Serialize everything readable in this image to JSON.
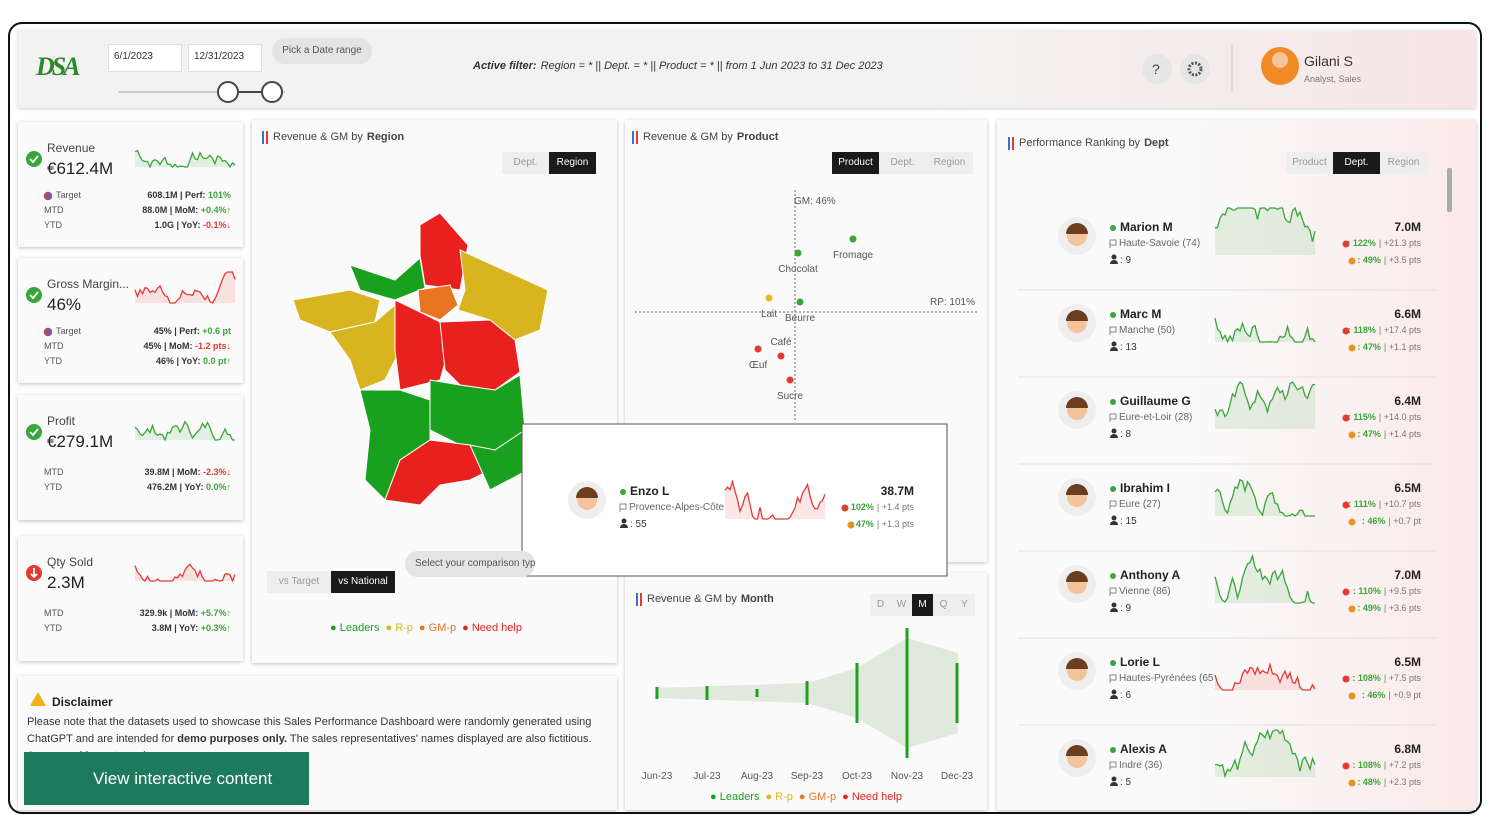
{
  "header": {
    "logo": "DSA",
    "date_start": "6/1/2023",
    "date_end": "12/31/2023",
    "date_range_hint": "Pick a Date range",
    "active_filter_label": "Active filter:",
    "active_filter": "Region = * || Dept. = * || Product = * || from 1 Jun 2023 to 31 Dec 2023",
    "help": "?",
    "user_name": "Gilani S",
    "user_role": "Analyst, Sales"
  },
  "kpis": [
    {
      "title": "Revenue",
      "value": "€612.4M",
      "rows": [
        {
          "label": "Target",
          "value": "608.1M | Perf: ",
          "delta": "101%"
        },
        {
          "label": "MTD",
          "value": "88.0M | MoM: ",
          "delta": "+0.4%↑"
        },
        {
          "label": "YTD",
          "value": "1.0G | YoY: ",
          "delta": "-0.1%↓"
        }
      ]
    },
    {
      "title": "Gross Margin...",
      "value": "46%",
      "rows": [
        {
          "label": "Target",
          "value": "45% | Perf: ",
          "delta": "+0.6 pt"
        },
        {
          "label": "MTD",
          "value": "45% | MoM: ",
          "delta": "-1.2 pts↓"
        },
        {
          "label": "YTD",
          "value": "46% | YoY: ",
          "delta": "0.0 pt↑"
        }
      ]
    },
    {
      "title": "Profit",
      "value": "€279.1M",
      "rows": [
        {
          "label": "MTD",
          "value": "39.8M | MoM: ",
          "delta": "-2.3%↓"
        },
        {
          "label": "YTD",
          "value": "476.2M | YoY: ",
          "delta": "0.0%↑"
        }
      ]
    },
    {
      "title": "Qty Sold",
      "value": "2.3M",
      "rows": [
        {
          "label": "MTD",
          "value": "329.9k | MoM: ",
          "delta": "+5.7%↑"
        },
        {
          "label": "YTD",
          "value": "3.8M | YoY: ",
          "delta": "+0.3%↑"
        }
      ]
    }
  ],
  "region_panel": {
    "title_prefix": "Revenue & GM by",
    "title_bold": "Region",
    "toggles": [
      "Dept.",
      "Region"
    ],
    "active": 1,
    "comparison": [
      "vs Target",
      "vs National"
    ],
    "comparison_active": 1,
    "comparison_hint": "Select your comparison typ",
    "legend": [
      {
        "name": "Leaders",
        "color": "#1aa01f"
      },
      {
        "name": "R-p",
        "color": "#d8b51f"
      },
      {
        "name": "GM-p",
        "color": "#e87520"
      },
      {
        "name": "Need help",
        "color": "#e8201e"
      }
    ]
  },
  "product_panel": {
    "title_prefix": "Revenue & GM by",
    "title_bold": "Product",
    "toggles": [
      "Product",
      "Dept.",
      "Region"
    ],
    "active": 0,
    "gm_label": "GM: 46%",
    "rp_label": "RP: 101%",
    "points": [
      "Fromage",
      "Chocolat",
      "Beurre",
      "Lait",
      "Café",
      "Œuf",
      "Sucre"
    ]
  },
  "month_panel": {
    "title_prefix": "Revenue & GM by",
    "title_bold": "Month",
    "toggles": [
      "D",
      "W",
      "M",
      "Q",
      "Y"
    ],
    "active": 2,
    "months": [
      "Jun-23",
      "Jul-23",
      "Aug-23",
      "Sep-23",
      "Oct-23",
      "Nov-23",
      "Dec-23"
    ]
  },
  "ranking_panel": {
    "title_prefix": "Performance Ranking by",
    "title_bold": "Dept",
    "toggles": [
      "Product",
      "Dept.",
      "Region"
    ],
    "active": 1,
    "people": [
      {
        "name": "Marion M",
        "dept": "Haute-Savoie (74)",
        "count": ": 9",
        "revenue": "7.0M",
        "rp": ": 122%",
        "rp_delta": "| +21.3 pts",
        "gm": ": 49%",
        "gm_delta": "| +3.5 pts"
      },
      {
        "name": "Marc M",
        "dept": "Manche (50)",
        "count": ": 13",
        "revenue": "6.6M",
        "rp": ": 118%",
        "rp_delta": "| +17.4 pts",
        "gm": ": 47%",
        "gm_delta": "| +1.1 pts"
      },
      {
        "name": "Guillaume G",
        "dept": "Eure-et-Loir (28)",
        "count": ": 8",
        "revenue": "6.4M",
        "rp": ": 115%",
        "rp_delta": "| +14.0 pts",
        "gm": ": 47%",
        "gm_delta": "| +1.4 pts"
      },
      {
        "name": "Ibrahim I",
        "dept": "Eure (27)",
        "count": ": 15",
        "revenue": "6.5M",
        "rp": ": 111%",
        "rp_delta": "| +10.7 pts",
        "gm": ": 46%",
        "gm_delta": "| +0.7 pt"
      },
      {
        "name": "Anthony A",
        "dept": "Vienne (86)",
        "count": ": 9",
        "revenue": "7.0M",
        "rp": ": 110%",
        "rp_delta": "| +9.5 pts",
        "gm": ": 49%",
        "gm_delta": "| +3.6 pts"
      },
      {
        "name": "Lorie L",
        "dept": "Hautes-Pyrénées (65",
        "count": ": 6",
        "revenue": "6.5M",
        "rp": ": 108%",
        "rp_delta": "| +7.5 pts",
        "gm": ": 46%",
        "gm_delta": "| +0.9 pt"
      },
      {
        "name": "Alexis A",
        "dept": "Indre (36)",
        "count": ": 5",
        "revenue": "6.8M",
        "rp": ": 108%",
        "rp_delta": "| +7.2 pts",
        "gm": ": 48%",
        "gm_delta": "| +2.3 pts"
      }
    ]
  },
  "tooltip": {
    "name": "Enzo L",
    "dept": "Provence-Alpes-Côte",
    "count": ": 55",
    "revenue": "38.7M",
    "rp": ": 102%",
    "rp_delta": "| +1.4 pts",
    "gm": ": 47%",
    "gm_delta": "| +1.3 pts"
  },
  "disclaimer": {
    "title": "Disclaimer",
    "text_1": "Please note that the datasets used to showcase this Sales Performance Dashboard were randomly generated using ChatGPT and are intended for",
    "text_bold": "demo purposes only.",
    "text_2": "The sales representatives' names displayed are also fictitious. Any resemblance to real"
  },
  "button": "View interactive content"
}
